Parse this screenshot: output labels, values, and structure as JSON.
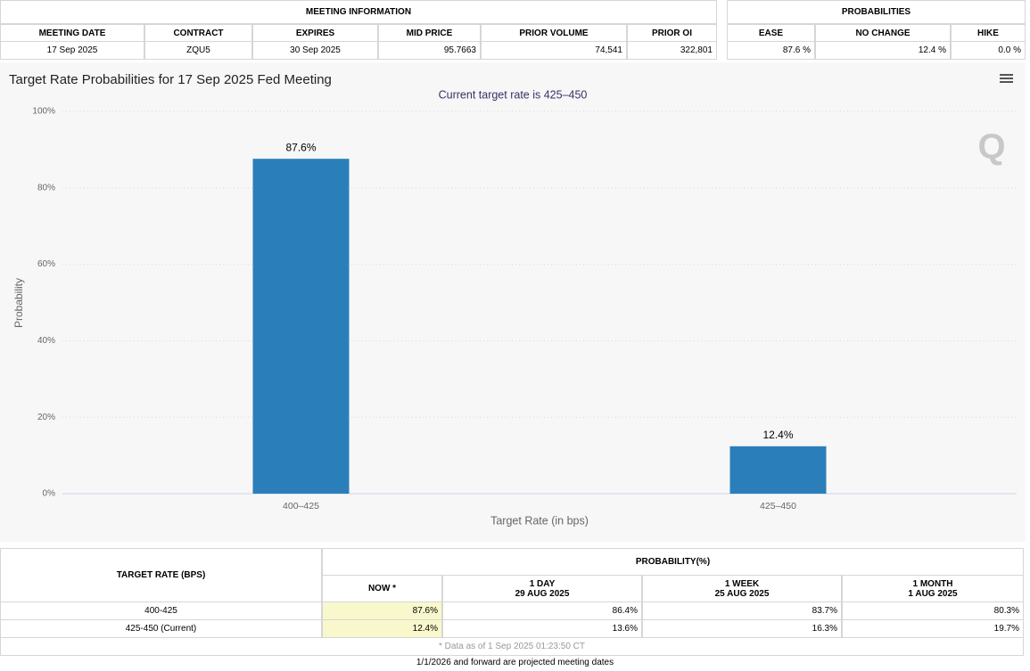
{
  "meeting_info": {
    "title": "MEETING INFORMATION",
    "headers": [
      "MEETING DATE",
      "CONTRACT",
      "EXPIRES",
      "MID PRICE",
      "PRIOR VOLUME",
      "PRIOR OI"
    ],
    "row": [
      "17 Sep 2025",
      "ZQU5",
      "30 Sep 2025",
      "95.7663",
      "74,541",
      "322,801"
    ]
  },
  "probabilities": {
    "title": "PROBABILITIES",
    "headers": [
      "EASE",
      "NO CHANGE",
      "HIKE"
    ],
    "row": [
      "87.6 %",
      "12.4 %",
      "0.0 %"
    ]
  },
  "chart": {
    "type": "bar",
    "title": "Target Rate Probabilities for 17 Sep 2025 Fed Meeting",
    "subtitle": "Current target rate is 425–450",
    "y_label": "Probability",
    "x_label": "Target Rate (in bps)",
    "categories": [
      "400–425",
      "425–450"
    ],
    "values": [
      87.6,
      12.4
    ],
    "value_labels": [
      "87.6%",
      "12.4%"
    ],
    "color": "#2a7fba",
    "ylim": [
      0,
      100
    ],
    "yticks": [
      {
        "value": 0,
        "label": "0%"
      },
      {
        "value": 20,
        "label": "20%"
      },
      {
        "value": 40,
        "label": "40%"
      },
      {
        "value": 60,
        "label": "60%"
      },
      {
        "value": 80,
        "label": "80%"
      },
      {
        "value": 100,
        "label": "100%"
      }
    ],
    "grid": true
  },
  "history_table": {
    "row_header": "TARGET RATE (BPS)",
    "group_header": "PROBABILITY(%)",
    "columns": [
      {
        "title": "NOW *"
      },
      {
        "title": "1 DAY",
        "date": "29 AUG 2025"
      },
      {
        "title": "1 WEEK",
        "date": "25 AUG 2025"
      },
      {
        "title": "1 MONTH",
        "date": "1 AUG 2025"
      }
    ],
    "rows": [
      [
        "400-425",
        "87.6%",
        "86.4%",
        "83.7%",
        "80.3%"
      ],
      [
        "425-450 (Current)",
        "12.4%",
        "13.6%",
        "16.3%",
        "19.7%"
      ]
    ],
    "note": "* Data as of 1 Sep 2025 01:23:50 CT"
  },
  "footer": "1/1/2026 and forward are projected meeting dates"
}
